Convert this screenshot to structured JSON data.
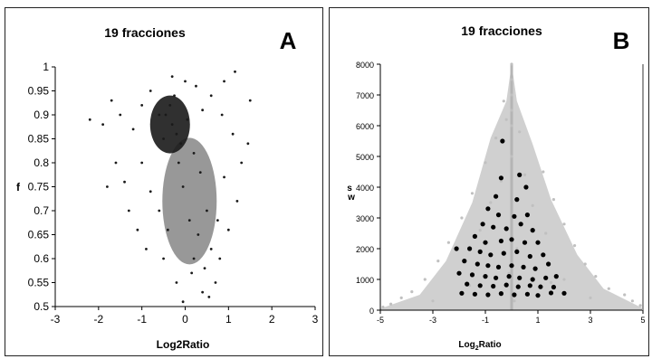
{
  "chart_data": [
    {
      "type": "scatter",
      "title": "19 fracciones",
      "panel_label": "A",
      "xlabel": "Log2Ratio",
      "ylabel": "f",
      "xlim": [
        -3,
        3
      ],
      "ylim": [
        0.5,
        1
      ],
      "x_ticks": [
        "-3",
        "-2",
        "-1",
        "0",
        "1",
        "2",
        "3"
      ],
      "y_ticks": [
        "0.5",
        "0.55",
        "0.6",
        "0.65",
        "0.7",
        "0.75",
        "0.8",
        "0.85",
        "0.9",
        "0.95",
        "1"
      ],
      "grid": false,
      "color": "#1a1a1a",
      "points": [
        [
          -0.3,
          0.88
        ],
        [
          -0.45,
          0.9
        ],
        [
          -0.2,
          0.86
        ],
        [
          -0.35,
          0.92
        ],
        [
          -0.1,
          0.84
        ],
        [
          -0.5,
          0.85
        ],
        [
          -0.25,
          0.94
        ],
        [
          0.05,
          0.89
        ],
        [
          -0.6,
          0.9
        ],
        [
          -0.15,
          0.8
        ],
        [
          0.2,
          0.82
        ],
        [
          0.35,
          0.78
        ],
        [
          -0.05,
          0.75
        ],
        [
          0.5,
          0.7
        ],
        [
          0.1,
          0.68
        ],
        [
          0.3,
          0.65
        ],
        [
          0.6,
          0.62
        ],
        [
          0.2,
          0.6
        ],
        [
          0.45,
          0.58
        ],
        [
          0.7,
          0.55
        ],
        [
          0.4,
          0.53
        ],
        [
          0.15,
          0.57
        ],
        [
          0.8,
          0.6
        ],
        [
          1.0,
          0.66
        ],
        [
          1.2,
          0.72
        ],
        [
          1.3,
          0.8
        ],
        [
          1.45,
          0.84
        ],
        [
          1.5,
          0.93
        ],
        [
          1.15,
          0.99
        ],
        [
          0.85,
          0.9
        ],
        [
          1.1,
          0.86
        ],
        [
          0.9,
          0.77
        ],
        [
          0.75,
          0.68
        ],
        [
          -0.8,
          0.95
        ],
        [
          -1.0,
          0.92
        ],
        [
          -1.2,
          0.87
        ],
        [
          -1.5,
          0.9
        ],
        [
          -1.7,
          0.93
        ],
        [
          -1.9,
          0.88
        ],
        [
          -2.2,
          0.89
        ],
        [
          -1.6,
          0.8
        ],
        [
          -1.4,
          0.76
        ],
        [
          -1.8,
          0.75
        ],
        [
          -1.3,
          0.7
        ],
        [
          -1.1,
          0.66
        ],
        [
          -0.9,
          0.62
        ],
        [
          -1.0,
          0.8
        ],
        [
          -0.8,
          0.74
        ],
        [
          -0.6,
          0.7
        ],
        [
          -0.4,
          0.66
        ],
        [
          -0.5,
          0.6
        ],
        [
          -0.2,
          0.55
        ],
        [
          -0.05,
          0.51
        ],
        [
          0.55,
          0.52
        ],
        [
          0.0,
          0.97
        ],
        [
          -0.3,
          0.98
        ],
        [
          0.25,
          0.96
        ],
        [
          0.9,
          0.97
        ],
        [
          0.6,
          0.94
        ],
        [
          0.4,
          0.91
        ]
      ]
    },
    {
      "type": "scatter",
      "title": "19 fracciones",
      "panel_label": "B",
      "xlabel": "Log2Ratio",
      "xlabel_sub": "2",
      "ylabel": "s",
      "ylabel_sub": "w",
      "xlim": [
        -5,
        5
      ],
      "ylim": [
        0,
        8000
      ],
      "x_ticks": [
        "-5",
        "-3",
        "-1",
        "1",
        "3",
        "5"
      ],
      "y_ticks": [
        "0",
        "1000",
        "2000",
        "3000",
        "4000",
        "5000",
        "6000",
        "7000",
        "8000"
      ],
      "grid": false,
      "series": [
        {
          "color": "#c0c0c0",
          "points": [
            [
              0,
              8000
            ],
            [
              0,
              7500
            ],
            [
              0,
              7000
            ],
            [
              0,
              6500
            ],
            [
              0,
              6000
            ],
            [
              0,
              5000
            ],
            [
              -0.3,
              6800
            ],
            [
              -0.2,
              6200
            ],
            [
              0.3,
              5800
            ],
            [
              -0.6,
              5600
            ],
            [
              -1.0,
              4800
            ],
            [
              1.2,
              4500
            ],
            [
              -1.5,
              3800
            ],
            [
              1.6,
              3600
            ],
            [
              -1.9,
              3000
            ],
            [
              2.0,
              2800
            ],
            [
              -2.4,
              2200
            ],
            [
              2.4,
              2100
            ],
            [
              -2.8,
              1600
            ],
            [
              2.8,
              1500
            ],
            [
              -3.3,
              1000
            ],
            [
              3.2,
              1100
            ],
            [
              -3.8,
              600
            ],
            [
              3.7,
              700
            ],
            [
              -4.2,
              400
            ],
            [
              4.3,
              500
            ],
            [
              -4.6,
              200
            ],
            [
              4.6,
              300
            ],
            [
              -4.9,
              100
            ],
            [
              4.9,
              150
            ],
            [
              -0.8,
              3500
            ],
            [
              0.8,
              3400
            ],
            [
              -0.4,
              4200
            ],
            [
              0.5,
              4400
            ],
            [
              -1.2,
              2600
            ],
            [
              1.3,
              2500
            ],
            [
              -2,
              1200
            ],
            [
              2,
              1000
            ],
            [
              1.5,
              900
            ],
            [
              -1.6,
              800
            ],
            [
              0.2,
              2000
            ],
            [
              -0.1,
              1200
            ],
            [
              0.1,
              300
            ],
            [
              3.0,
              400
            ],
            [
              -3,
              300
            ]
          ]
        },
        {
          "color": "#000000",
          "points": [
            [
              -0.35,
              5500
            ],
            [
              -0.4,
              4300
            ],
            [
              0.3,
              4400
            ],
            [
              0.55,
              4000
            ],
            [
              -0.6,
              3700
            ],
            [
              0.2,
              3600
            ],
            [
              -0.9,
              3300
            ],
            [
              -0.5,
              3100
            ],
            [
              0.1,
              3050
            ],
            [
              0.6,
              3100
            ],
            [
              -1.1,
              2800
            ],
            [
              -0.7,
              2700
            ],
            [
              -0.2,
              2650
            ],
            [
              0.35,
              2800
            ],
            [
              0.8,
              2600
            ],
            [
              -1.4,
              2400
            ],
            [
              -1.0,
              2200
            ],
            [
              -0.4,
              2250
            ],
            [
              0.0,
              2300
            ],
            [
              0.5,
              2200
            ],
            [
              1.0,
              2200
            ],
            [
              -1.6,
              2000
            ],
            [
              -1.2,
              1900
            ],
            [
              -0.8,
              1800
            ],
            [
              -0.3,
              1850
            ],
            [
              0.2,
              1900
            ],
            [
              0.7,
              1750
            ],
            [
              1.2,
              1800
            ],
            [
              -1.8,
              1600
            ],
            [
              -1.3,
              1500
            ],
            [
              -0.9,
              1450
            ],
            [
              -0.5,
              1400
            ],
            [
              0.0,
              1450
            ],
            [
              0.45,
              1400
            ],
            [
              0.9,
              1350
            ],
            [
              1.4,
              1500
            ],
            [
              -2.0,
              1200
            ],
            [
              -1.5,
              1150
            ],
            [
              -1.0,
              1100
            ],
            [
              -0.6,
              1050
            ],
            [
              -0.1,
              1100
            ],
            [
              0.3,
              1050
            ],
            [
              0.8,
              1000
            ],
            [
              1.3,
              1050
            ],
            [
              1.7,
              1100
            ],
            [
              -1.7,
              850
            ],
            [
              -1.2,
              800
            ],
            [
              -0.7,
              780
            ],
            [
              -0.2,
              820
            ],
            [
              0.25,
              760
            ],
            [
              0.7,
              800
            ],
            [
              1.1,
              760
            ],
            [
              1.6,
              750
            ],
            [
              -1.9,
              550
            ],
            [
              -1.4,
              520
            ],
            [
              -0.9,
              500
            ],
            [
              -0.4,
              540
            ],
            [
              0.1,
              500
            ],
            [
              0.6,
              520
            ],
            [
              1.0,
              480
            ],
            [
              1.5,
              560
            ],
            [
              2.0,
              550
            ],
            [
              -2.1,
              2000
            ]
          ]
        }
      ]
    }
  ]
}
